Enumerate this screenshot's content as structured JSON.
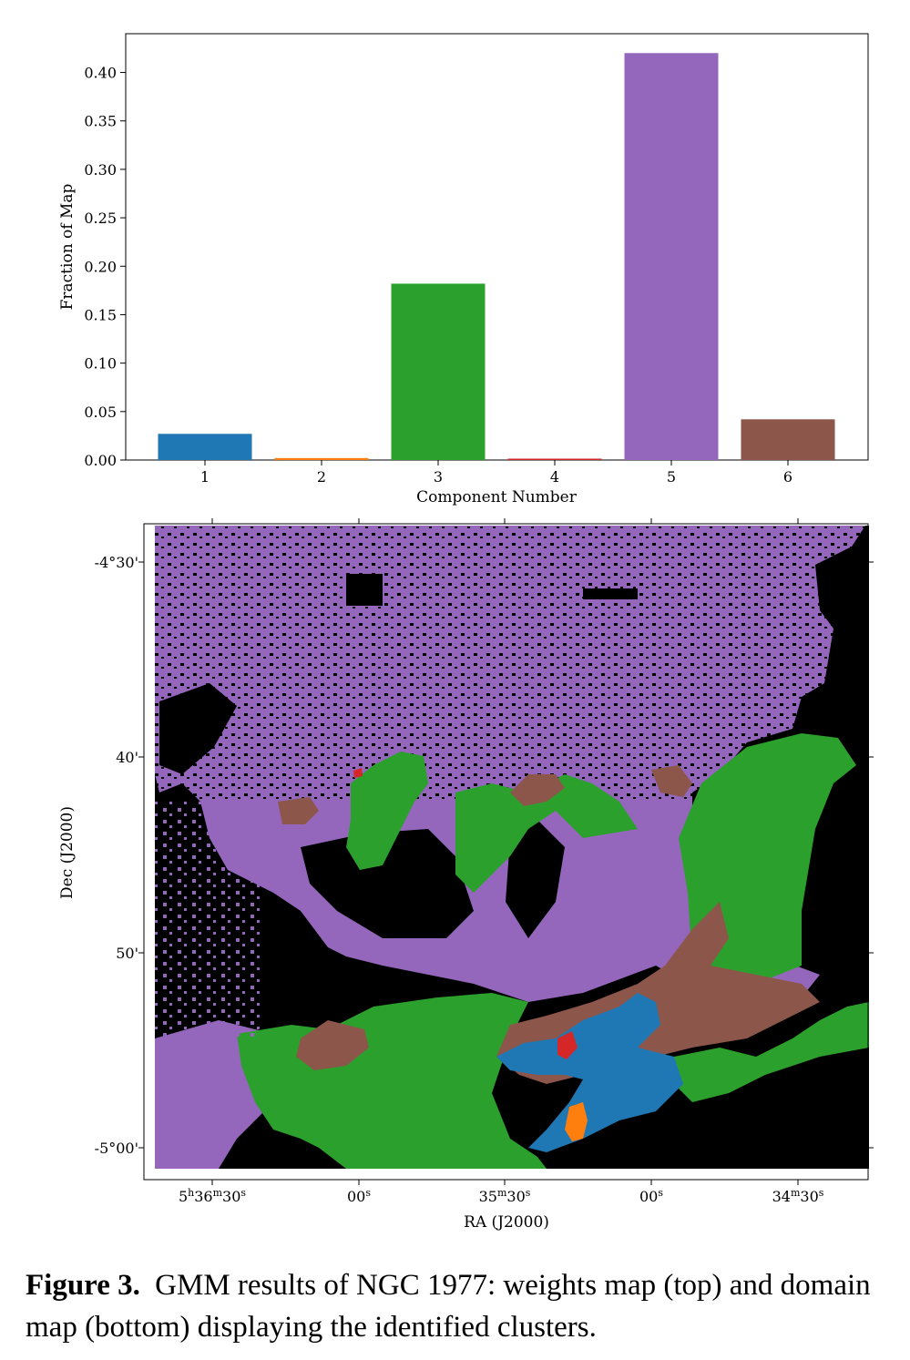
{
  "chart_data": [
    {
      "type": "bar",
      "categories": [
        "1",
        "2",
        "3",
        "4",
        "5",
        "6"
      ],
      "values": [
        0.027,
        0.002,
        0.182,
        0.001,
        0.42,
        0.042
      ],
      "colors": [
        "#1f77b4",
        "#ff7f0e",
        "#2ca02c",
        "#d62728",
        "#9467bd",
        "#8c564b"
      ],
      "xlabel": "Component Number",
      "ylabel": "Fraction of Map",
      "ylim": [
        0,
        0.44
      ],
      "yticks": [
        0.0,
        0.05,
        0.1,
        0.15,
        0.2,
        0.25,
        0.3,
        0.35,
        0.4
      ],
      "ytick_labels": [
        "0.00",
        "0.05",
        "0.10",
        "0.15",
        "0.20",
        "0.25",
        "0.30",
        "0.35",
        "0.40"
      ],
      "grid": false
    },
    {
      "type": "heatmap",
      "xlabel": "RA (J2000)",
      "ylabel": "Dec (J2000)",
      "xtick_labels": [
        {
          "main": "5",
          "sup1": "h",
          "mid": "36",
          "sup2": "m",
          "tail": "30",
          "sup3": "s"
        },
        {
          "main": "",
          "sup1": "",
          "mid": "",
          "sup2": "",
          "tail": "00",
          "sup3": "s"
        },
        {
          "main": "",
          "sup1": "",
          "mid": "35",
          "sup2": "m",
          "tail": "30",
          "sup3": "s"
        },
        {
          "main": "",
          "sup1": "",
          "mid": "",
          "sup2": "",
          "tail": "00",
          "sup3": "s"
        },
        {
          "main": "",
          "sup1": "",
          "mid": "34",
          "sup2": "m",
          "tail": "30",
          "sup3": "s"
        }
      ],
      "ytick_labels": [
        "-4°30'",
        "40'",
        "50'",
        "-5°00'"
      ],
      "background_color": "#000000",
      "cluster_colors": {
        "1": "#1f77b4",
        "2": "#ff7f0e",
        "3": "#2ca02c",
        "4": "#d62728",
        "5": "#9467bd",
        "6": "#8c564b"
      }
    }
  ],
  "caption": {
    "label": "Figure 3.",
    "text": "GMM results of NGC 1977: weights map (top) and domain map (bottom) displaying the identified clusters."
  }
}
